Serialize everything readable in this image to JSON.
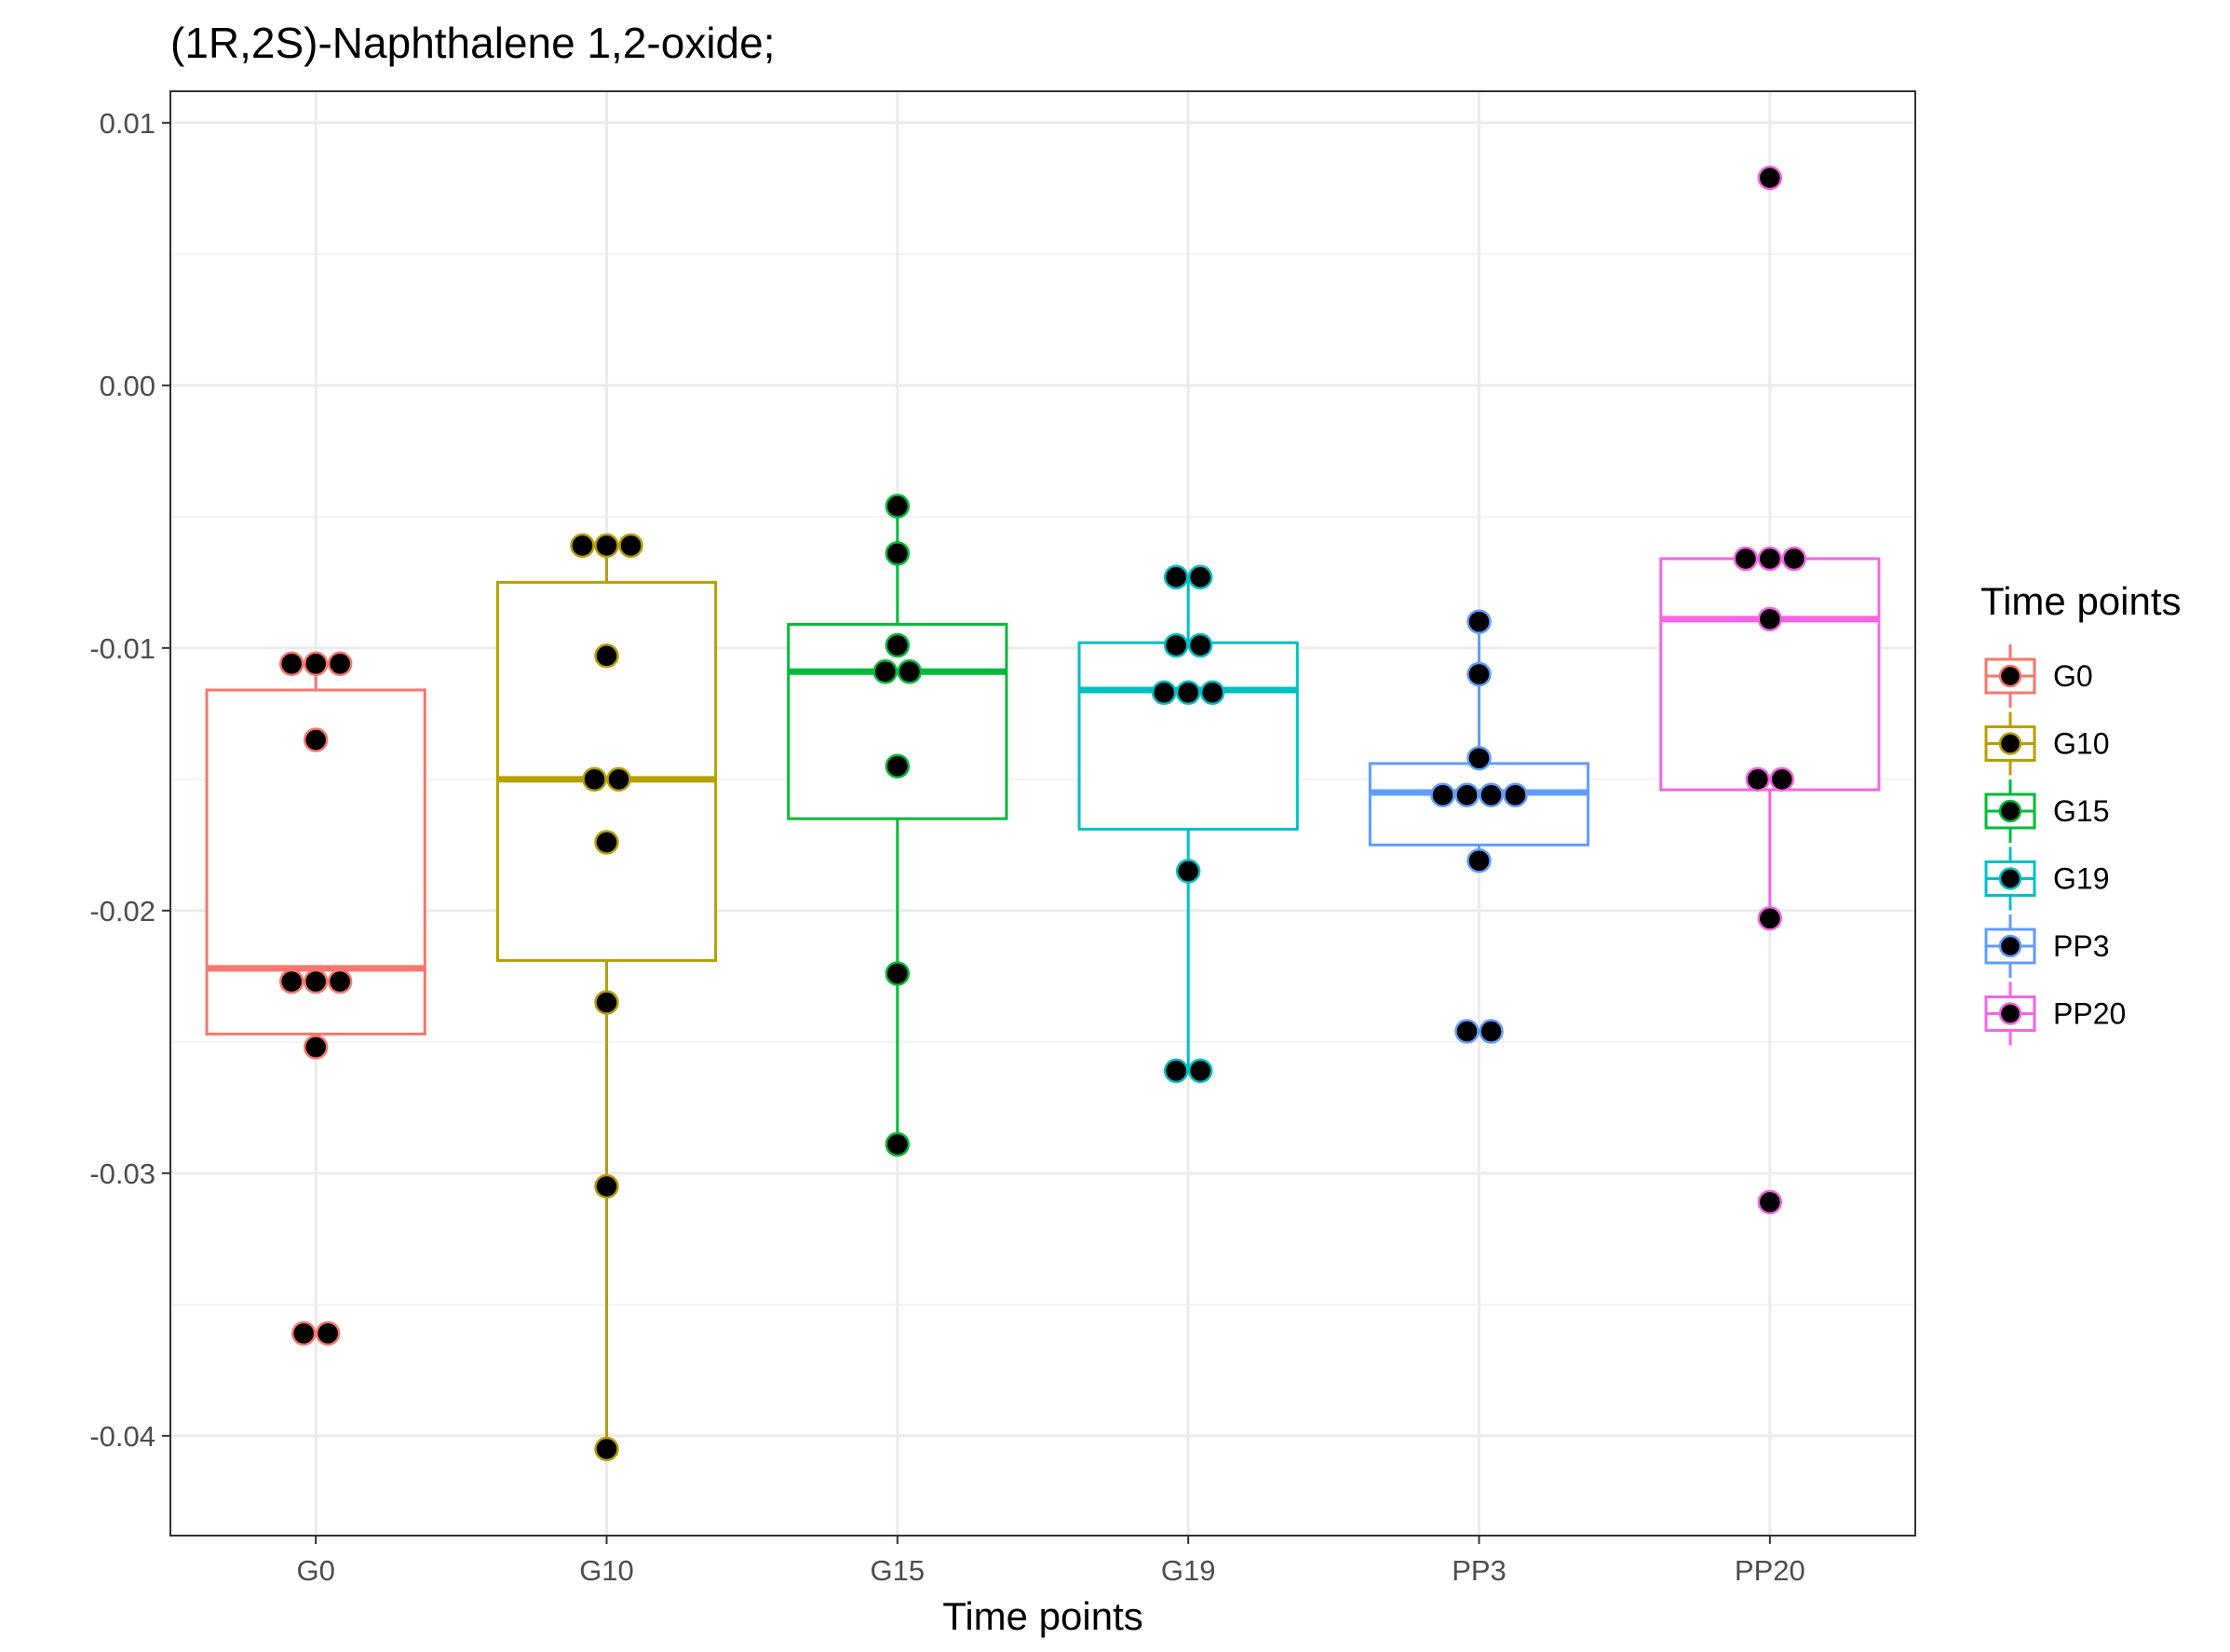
{
  "chart_data": {
    "type": "box",
    "title": "(1R,2S)-Naphthalene 1,2-oxide;",
    "xlabel": "Time points",
    "ylabel": "",
    "ylim": [
      -0.0438,
      0.0112
    ],
    "yticks": [
      0.01,
      0.0,
      -0.01,
      -0.02,
      -0.03,
      -0.04
    ],
    "ytick_labels": [
      "0.01",
      "0.00",
      "-0.01",
      "-0.02",
      "-0.03",
      "-0.04"
    ],
    "categories": [
      "G0",
      "G10",
      "G15",
      "G19",
      "PP3",
      "PP20"
    ],
    "grid": true,
    "legend": {
      "title": "Time points",
      "position": "right"
    },
    "series": [
      {
        "name": "G0",
        "color": "#F8766D",
        "box": {
          "lower": -0.0247,
          "q1": -0.0247,
          "median": -0.0222,
          "q3": -0.0116,
          "upper": -0.0106
        },
        "points": [
          -0.0106,
          -0.0106,
          -0.0106,
          -0.0135,
          -0.0227,
          -0.0227,
          -0.0227,
          -0.0252,
          -0.0361,
          -0.0361
        ]
      },
      {
        "name": "G10",
        "color": "#B79F00",
        "box": {
          "lower": -0.0405,
          "q1": -0.0219,
          "median": -0.015,
          "q3": -0.0075,
          "upper": -0.0061
        },
        "points": [
          -0.0061,
          -0.0061,
          -0.0061,
          -0.0103,
          -0.015,
          -0.015,
          -0.0174,
          -0.0235,
          -0.0305,
          -0.0405
        ]
      },
      {
        "name": "G15",
        "color": "#00BA38",
        "box": {
          "lower": -0.0289,
          "q1": -0.0165,
          "median": -0.0109,
          "q3": -0.0091,
          "upper": -0.0046
        },
        "points": [
          -0.0046,
          -0.0064,
          -0.0099,
          -0.0109,
          -0.0109,
          -0.0145,
          -0.0224,
          -0.0289
        ]
      },
      {
        "name": "G19",
        "color": "#00BFC4",
        "box": {
          "lower": -0.0261,
          "q1": -0.0169,
          "median": -0.0116,
          "q3": -0.0098,
          "upper": -0.0073
        },
        "points": [
          -0.0073,
          -0.0073,
          -0.0099,
          -0.0099,
          -0.0117,
          -0.0117,
          -0.0117,
          -0.0185,
          -0.0261,
          -0.0261
        ]
      },
      {
        "name": "PP3",
        "color": "#619CFF",
        "box": {
          "lower": -0.0181,
          "q1": -0.0175,
          "median": -0.0155,
          "q3": -0.0144,
          "upper": -0.009
        },
        "points": [
          -0.009,
          -0.011,
          -0.0142,
          -0.0156,
          -0.0156,
          -0.0156,
          -0.0156,
          -0.0181,
          -0.0246,
          -0.0246
        ]
      },
      {
        "name": "PP20",
        "color": "#F564E3",
        "box": {
          "lower": -0.0203,
          "q1": -0.0154,
          "median": -0.0089,
          "q3": -0.0066,
          "upper": -0.0066
        },
        "points": [
          0.0079,
          -0.0066,
          -0.0066,
          -0.0066,
          -0.0089,
          -0.015,
          -0.015,
          -0.0203,
          -0.0311
        ]
      }
    ]
  }
}
